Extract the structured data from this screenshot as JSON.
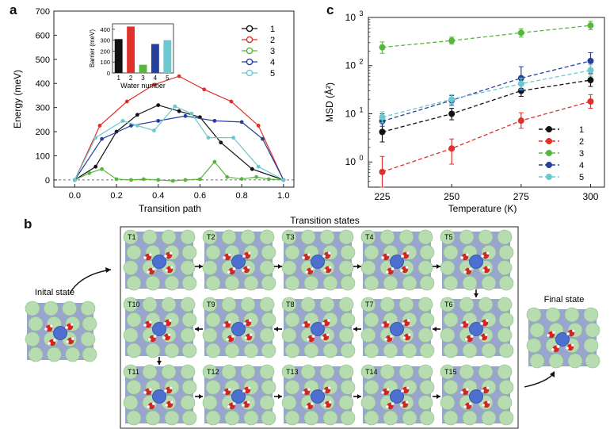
{
  "panels": {
    "a": "a",
    "b": "b",
    "c": "c"
  },
  "chart_data": [
    {
      "type": "line",
      "id": "energy-profile",
      "title": "",
      "xlabel": "Transition path",
      "ylabel": "Energy (meV)",
      "xlim": [
        -0.1,
        1.05
      ],
      "ylim": [
        -30,
        700
      ],
      "xticks": [
        "0.0",
        "0.2",
        "0.4",
        "0.6",
        "0.8",
        "1.0"
      ],
      "yticks": [
        "0",
        "100",
        "200",
        "300",
        "400",
        "500",
        "600",
        "700"
      ],
      "grid": false,
      "legend_position": "top-right",
      "colors": [
        "#111111",
        "#e0302a",
        "#5ab540",
        "#24409a",
        "#6cc8cf"
      ],
      "series": [
        {
          "name": "1",
          "x": [
            0.0,
            0.1,
            0.2,
            0.3,
            0.4,
            0.5,
            0.6,
            0.7,
            0.85,
            1.0
          ],
          "y": [
            0,
            55,
            200,
            270,
            310,
            285,
            260,
            155,
            45,
            0
          ]
        },
        {
          "name": "2",
          "x": [
            0.0,
            0.12,
            0.25,
            0.38,
            0.5,
            0.62,
            0.75,
            0.88,
            1.0
          ],
          "y": [
            0,
            225,
            325,
            395,
            430,
            375,
            325,
            225,
            0
          ]
        },
        {
          "name": "3",
          "x": [
            0.0,
            0.07,
            0.13,
            0.2,
            0.27,
            0.33,
            0.4,
            0.47,
            0.53,
            0.6,
            0.67,
            0.73,
            0.8,
            0.87,
            0.93,
            1.0
          ],
          "y": [
            0,
            28,
            45,
            3,
            0,
            3,
            0,
            -4,
            0,
            3,
            75,
            12,
            4,
            12,
            3,
            0
          ]
        },
        {
          "name": "4",
          "x": [
            0.0,
            0.13,
            0.27,
            0.4,
            0.53,
            0.67,
            0.8,
            0.9,
            1.0
          ],
          "y": [
            0,
            170,
            225,
            245,
            265,
            245,
            240,
            170,
            0
          ]
        },
        {
          "name": "5",
          "x": [
            0.0,
            0.1,
            0.23,
            0.3,
            0.38,
            0.48,
            0.56,
            0.64,
            0.76,
            0.88,
            1.0
          ],
          "y": [
            0,
            175,
            245,
            225,
            205,
            305,
            275,
            175,
            175,
            55,
            0
          ]
        }
      ]
    },
    {
      "type": "bar",
      "id": "barrier-inset",
      "xlabel": "Water number",
      "ylabel": "Barrier (meV)",
      "categories": [
        "1",
        "2",
        "3",
        "4",
        "5"
      ],
      "values": [
        310,
        425,
        75,
        265,
        300
      ],
      "ylim": [
        0,
        450
      ],
      "yticks": [
        "0",
        "100",
        "200",
        "300",
        "400"
      ],
      "colors": [
        "#111111",
        "#e0302a",
        "#5ab540",
        "#24409a",
        "#6cc8cf"
      ]
    },
    {
      "type": "line",
      "id": "msd-vs-temperature",
      "xlabel": "Temperature (K)",
      "ylabel": "MSD (Å²)",
      "y_scale": "log",
      "xlim": [
        220,
        305
      ],
      "ylim": [
        0.3,
        1000
      ],
      "xticks": [
        "225",
        "250",
        "275",
        "300"
      ],
      "ytick_labels": [
        "10^0",
        "10^1",
        "10^2",
        "10^3"
      ],
      "grid": false,
      "legend_position": "bottom-right",
      "colors": [
        "#111111",
        "#e0302a",
        "#5ab540",
        "#24409a",
        "#6cc8cf"
      ],
      "series": [
        {
          "name": "1",
          "x": [
            225,
            250,
            275,
            300
          ],
          "y": [
            4.2,
            10,
            30,
            50
          ],
          "err_low": [
            2.6,
            7.5,
            23,
            37
          ],
          "err_high": [
            7,
            13,
            40,
            68
          ]
        },
        {
          "name": "2",
          "x": [
            225,
            250,
            275,
            300
          ],
          "y": [
            0.62,
            1.9,
            7.2,
            18
          ],
          "err_low": [
            0.3,
            0.9,
            5,
            13
          ],
          "err_high": [
            1.3,
            3,
            10.5,
            25
          ]
        },
        {
          "name": "3",
          "x": [
            225,
            250,
            275,
            300
          ],
          "y": [
            240,
            330,
            480,
            680
          ],
          "err_low": [
            180,
            280,
            390,
            560
          ],
          "err_high": [
            310,
            390,
            580,
            830
          ]
        },
        {
          "name": "4",
          "x": [
            225,
            250,
            275,
            300
          ],
          "y": [
            7,
            19,
            55,
            125
          ],
          "err_low": [
            5.5,
            15,
            30,
            80
          ],
          "err_high": [
            10,
            24,
            95,
            185
          ]
        },
        {
          "name": "5",
          "x": [
            225,
            250,
            275,
            300
          ],
          "y": [
            8.5,
            20,
            42,
            80
          ],
          "err_low": [
            6.5,
            16,
            32,
            60
          ],
          "err_high": [
            11,
            25,
            55,
            105
          ]
        }
      ]
    }
  ],
  "panel_b": {
    "title": "Transition states",
    "initial_label": "Inital state",
    "final_label": "Final state",
    "states": [
      "T1",
      "T2",
      "T3",
      "T4",
      "T5",
      "T10",
      "T9",
      "T8",
      "T7",
      "T6",
      "T11",
      "T12",
      "T13",
      "T14",
      "T15"
    ]
  }
}
